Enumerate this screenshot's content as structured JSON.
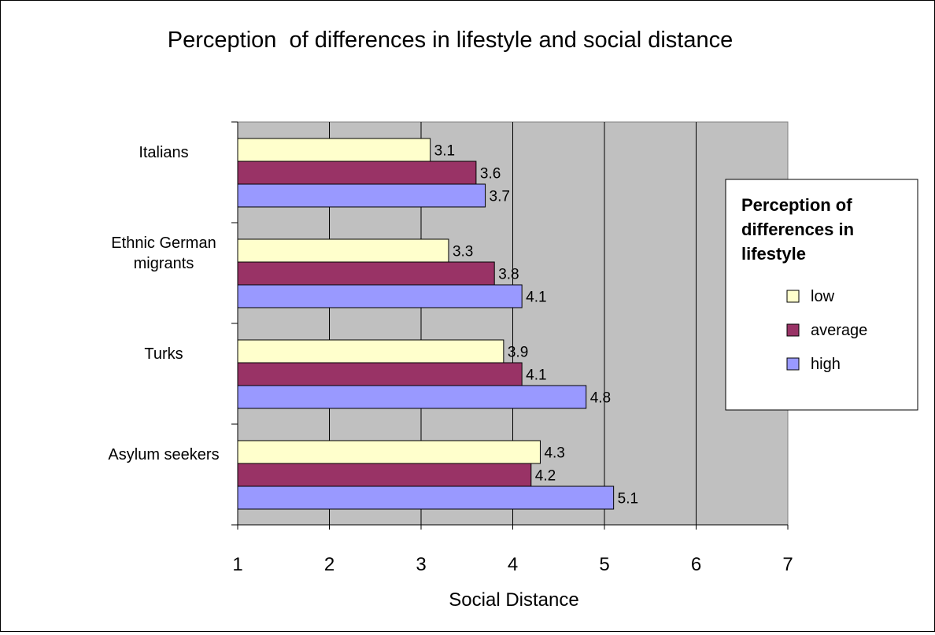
{
  "chart_data": {
    "type": "bar",
    "orientation": "horizontal",
    "title": "Perception  of differences in lifestyle and social distance",
    "xlabel": "Social Distance",
    "ylabel": "",
    "xlim": [
      1,
      7
    ],
    "x_ticks": [
      "1",
      "2",
      "3",
      "4",
      "5",
      "6",
      "7"
    ],
    "grid": true,
    "categories": [
      [
        "Italians"
      ],
      [
        "Ethnic German",
        "migrants"
      ],
      [
        "Turks"
      ],
      [
        "Asylum seekers"
      ]
    ],
    "series": [
      {
        "name": "low",
        "color": "#FFFFCC",
        "values": [
          3.1,
          3.3,
          3.9,
          4.3
        ],
        "labels": [
          "3.1",
          "3.3",
          "3.9",
          "4.3"
        ]
      },
      {
        "name": "average",
        "color": "#993366",
        "values": [
          3.6,
          3.8,
          4.1,
          4.2
        ],
        "labels": [
          "3.6",
          "3.8",
          "4.1",
          "4.2"
        ]
      },
      {
        "name": "high",
        "color": "#9999FF",
        "values": [
          3.7,
          4.1,
          4.8,
          5.1
        ],
        "labels": [
          "3.7",
          "4.1",
          "4.8",
          "5.1"
        ]
      }
    ],
    "legend": {
      "title": [
        "Perception  of",
        "differences in",
        "lifestyle"
      ],
      "position": "right"
    },
    "plot_background": "#C0C0C0"
  }
}
